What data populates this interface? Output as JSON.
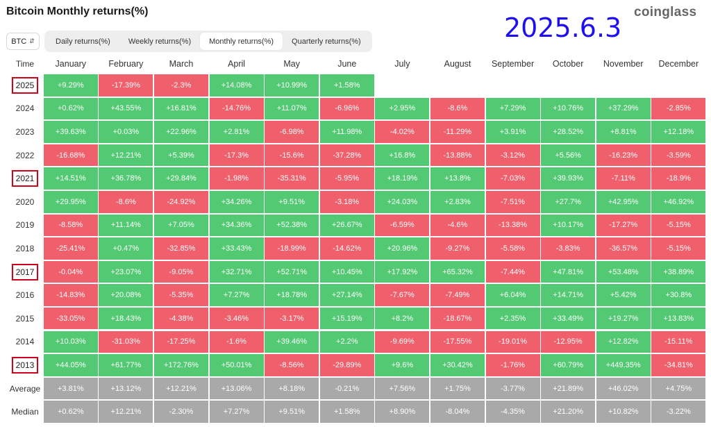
{
  "title": "Bitcoin Monthly returns(%)",
  "brand": "coinglass",
  "date_stamp": "2025.6.3",
  "coin_select": "BTC",
  "tabs": [
    "Daily returns(%)",
    "Weekly returns(%)",
    "Monthly returns(%)",
    "Quarterly returns(%)"
  ],
  "active_tab": 2,
  "time_label": "Time",
  "months": [
    "January",
    "February",
    "March",
    "April",
    "May",
    "June",
    "July",
    "August",
    "September",
    "October",
    "November",
    "December"
  ],
  "highlighted_years": [
    "2025",
    "2021",
    "2017",
    "2013"
  ],
  "colors": {
    "positive": "#52c972",
    "negative": "#ef5f6c",
    "summary": "#a9a9a9",
    "highlight": "#d0021b",
    "date": "#1d0ff0"
  },
  "years": [
    {
      "year": "2025",
      "values": [
        "+9.29%",
        "-17.39%",
        "-2.3%",
        "+14.08%",
        "+10.99%",
        "+1.58%",
        "",
        "",
        "",
        "",
        "",
        ""
      ]
    },
    {
      "year": "2024",
      "values": [
        "+0.62%",
        "+43.55%",
        "+16.81%",
        "-14.76%",
        "+11.07%",
        "-6.96%",
        "+2.95%",
        "-8.6%",
        "+7.29%",
        "+10.76%",
        "+37.29%",
        "-2.85%"
      ]
    },
    {
      "year": "2023",
      "values": [
        "+39.63%",
        "+0.03%",
        "+22.96%",
        "+2.81%",
        "-6.98%",
        "+11.98%",
        "-4.02%",
        "-11.29%",
        "+3.91%",
        "+28.52%",
        "+8.81%",
        "+12.18%"
      ]
    },
    {
      "year": "2022",
      "values": [
        "-16.68%",
        "+12.21%",
        "+5.39%",
        "-17.3%",
        "-15.6%",
        "-37.28%",
        "+16.8%",
        "-13.88%",
        "-3.12%",
        "+5.56%",
        "-16.23%",
        "-3.59%"
      ]
    },
    {
      "year": "2021",
      "values": [
        "+14.51%",
        "+36.78%",
        "+29.84%",
        "-1.98%",
        "-35.31%",
        "-5.95%",
        "+18.19%",
        "+13.8%",
        "-7.03%",
        "+39.93%",
        "-7.11%",
        "-18.9%"
      ]
    },
    {
      "year": "2020",
      "values": [
        "+29.95%",
        "-8.6%",
        "-24.92%",
        "+34.26%",
        "+9.51%",
        "-3.18%",
        "+24.03%",
        "+2.83%",
        "-7.51%",
        "+27.7%",
        "+42.95%",
        "+46.92%"
      ]
    },
    {
      "year": "2019",
      "values": [
        "-8.58%",
        "+11.14%",
        "+7.05%",
        "+34.36%",
        "+52.38%",
        "+26.67%",
        "-6.59%",
        "-4.6%",
        "-13.38%",
        "+10.17%",
        "-17.27%",
        "-5.15%"
      ]
    },
    {
      "year": "2018",
      "values": [
        "-25.41%",
        "+0.47%",
        "-32.85%",
        "+33.43%",
        "-18.99%",
        "-14.62%",
        "+20.96%",
        "-9.27%",
        "-5.58%",
        "-3.83%",
        "-36.57%",
        "-5.15%"
      ]
    },
    {
      "year": "2017",
      "values": [
        "-0.04%",
        "+23.07%",
        "-9.05%",
        "+32.71%",
        "+52.71%",
        "+10.45%",
        "+17.92%",
        "+65.32%",
        "-7.44%",
        "+47.81%",
        "+53.48%",
        "+38.89%"
      ]
    },
    {
      "year": "2016",
      "values": [
        "-14.83%",
        "+20.08%",
        "-5.35%",
        "+7.27%",
        "+18.78%",
        "+27.14%",
        "-7.67%",
        "-7.49%",
        "+6.04%",
        "+14.71%",
        "+5.42%",
        "+30.8%"
      ]
    },
    {
      "year": "2015",
      "values": [
        "-33.05%",
        "+18.43%",
        "-4.38%",
        "-3.46%",
        "-3.17%",
        "+15.19%",
        "+8.2%",
        "-18.67%",
        "+2.35%",
        "+33.49%",
        "+19.27%",
        "+13.83%"
      ]
    },
    {
      "year": "2014",
      "values": [
        "+10.03%",
        "-31.03%",
        "-17.25%",
        "-1.6%",
        "+39.46%",
        "+2.2%",
        "-9.69%",
        "-17.55%",
        "-19.01%",
        "-12.95%",
        "+12.82%",
        "-15.11%"
      ]
    },
    {
      "year": "2013",
      "values": [
        "+44.05%",
        "+61.77%",
        "+172.76%",
        "+50.01%",
        "-8.56%",
        "-29.89%",
        "+9.6%",
        "+30.42%",
        "-1.76%",
        "+60.79%",
        "+449.35%",
        "-34.81%"
      ]
    }
  ],
  "summary": [
    {
      "label": "Average",
      "values": [
        "+3.81%",
        "+13.12%",
        "+12.21%",
        "+13.06%",
        "+8.18%",
        "-0.21%",
        "+7.56%",
        "+1.75%",
        "-3.77%",
        "+21.89%",
        "+46.02%",
        "+4.75%"
      ]
    },
    {
      "label": "Median",
      "values": [
        "+0.62%",
        "+12.21%",
        "-2.30%",
        "+7.27%",
        "+9.51%",
        "+1.58%",
        "+8.90%",
        "-8.04%",
        "-4.35%",
        "+21.20%",
        "+10.82%",
        "-3.22%"
      ]
    }
  ]
}
